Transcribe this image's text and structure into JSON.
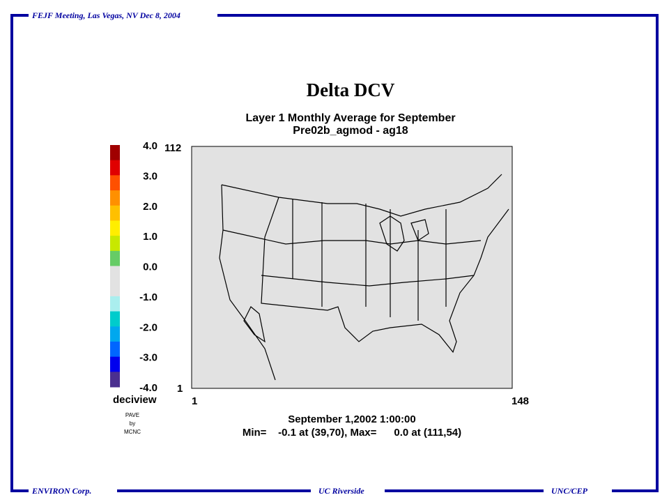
{
  "header": {
    "meeting": "FEJF Meeting, Las Vegas, NV Dec 8, 2004"
  },
  "footer": {
    "left": "ENVIRON Corp.",
    "center": "UC Riverside",
    "right": "UNC/CEP"
  },
  "plot": {
    "title": "Delta DCV",
    "subtitle": [
      "Layer 1 Monthly Average for September",
      "Pre02b_agmod - ag18"
    ],
    "colorbar": {
      "labels": [
        "4.0",
        "3.0",
        "2.0",
        "1.0",
        "0.0",
        "-1.0",
        "-2.0",
        "-3.0",
        "-4.0"
      ],
      "colors": [
        "#a00000",
        "#e00000",
        "#ff5000",
        "#ff9000",
        "#ffc000",
        "#ffee00",
        "#c8e800",
        "#66cc66",
        "#e2e2e2",
        "#e2e2e2",
        "#aaeeee",
        "#00cccc",
        "#00a8ee",
        "#0066ff",
        "#0000ee",
        "#4b2f8f"
      ],
      "unit": "deciview"
    },
    "y_axis": {
      "top": "112",
      "bottom": "1"
    },
    "x_axis": {
      "left": "1",
      "right": "148"
    },
    "credit": [
      "PAVE",
      "by",
      "MCNC"
    ],
    "date": "September 1,2002 1:00:00",
    "stats": "Min=    -0.1 at (39,70), Max=      0.0 at (111,54)"
  }
}
